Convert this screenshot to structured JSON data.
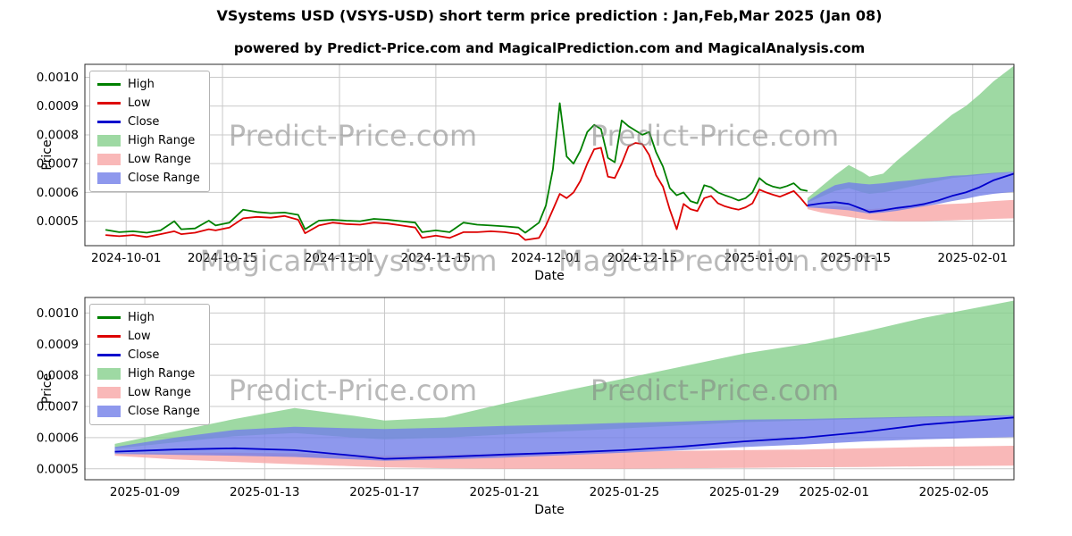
{
  "page": {
    "title": "VSystems USD (VSYS-USD) short term price prediction : Jan,Feb,Mar 2025 (Jan 08)",
    "subtitle": "powered by Predict-Price.com and MagicalPrediction.com and MagicalAnalysis.com"
  },
  "watermarks": {
    "predict_price": "Predict-Price.com",
    "magical_analysis": "MagicalAnalysis.com",
    "magical_prediction": "MagicalPrediction.com"
  },
  "colors": {
    "high": "#008000",
    "low": "#dd0000",
    "close": "#0000cd",
    "high_range": "rgba(134,208,140,0.8)",
    "low_range": "rgba(248,166,166,0.8)",
    "close_range": "rgba(114,126,232,0.8)",
    "grid": "#c9c9c9",
    "frame": "#2a2a2a",
    "watermark": "rgba(128,128,128,0.55)"
  },
  "legend": [
    {
      "label": "High",
      "swatch": "line",
      "color": "colors.high"
    },
    {
      "label": "Low",
      "swatch": "line",
      "color": "colors.low"
    },
    {
      "label": "Close",
      "swatch": "line",
      "color": "colors.close"
    },
    {
      "label": "High Range",
      "swatch": "patch",
      "color": "colors.high_range"
    },
    {
      "label": "Low Range",
      "swatch": "patch",
      "color": "colors.low_range"
    },
    {
      "label": "Close Range",
      "swatch": "patch",
      "color": "colors.close_range"
    }
  ],
  "history": {
    "x": [
      "2024-09-28",
      "2024-09-30",
      "2024-10-02",
      "2024-10-04",
      "2024-10-06",
      "2024-10-08",
      "2024-10-09",
      "2024-10-11",
      "2024-10-13",
      "2024-10-14",
      "2024-10-16",
      "2024-10-18",
      "2024-10-20",
      "2024-10-22",
      "2024-10-24",
      "2024-10-26",
      "2024-10-27",
      "2024-10-29",
      "2024-10-31",
      "2024-11-02",
      "2024-11-04",
      "2024-11-06",
      "2024-11-08",
      "2024-11-10",
      "2024-11-12",
      "2024-11-13",
      "2024-11-15",
      "2024-11-17",
      "2024-11-19",
      "2024-11-21",
      "2024-11-23",
      "2024-11-25",
      "2024-11-27",
      "2024-11-28",
      "2024-11-30",
      "2024-12-01",
      "2024-12-02",
      "2024-12-03",
      "2024-12-04",
      "2024-12-05",
      "2024-12-06",
      "2024-12-07",
      "2024-12-08",
      "2024-12-09",
      "2024-12-10",
      "2024-12-11",
      "2024-12-12",
      "2024-12-13",
      "2024-12-14",
      "2024-12-15",
      "2024-12-16",
      "2024-12-17",
      "2024-12-18",
      "2024-12-19",
      "2024-12-20",
      "2024-12-21",
      "2024-12-22",
      "2024-12-23",
      "2024-12-24",
      "2024-12-25",
      "2024-12-26",
      "2024-12-27",
      "2024-12-28",
      "2024-12-29",
      "2024-12-30",
      "2024-12-31",
      "2025-01-01",
      "2025-01-02",
      "2025-01-03",
      "2025-01-04",
      "2025-01-05",
      "2025-01-06",
      "2025-01-07",
      "2025-01-08"
    ],
    "high": [
      0.00047,
      0.000462,
      0.000465,
      0.00046,
      0.000468,
      0.0005,
      0.000472,
      0.000475,
      0.000502,
      0.000485,
      0.000495,
      0.00054,
      0.000532,
      0.000528,
      0.00053,
      0.000522,
      0.000472,
      0.000502,
      0.000505,
      0.000502,
      0.0005,
      0.000508,
      0.000505,
      0.0005,
      0.000495,
      0.000462,
      0.000468,
      0.000462,
      0.000495,
      0.000488,
      0.000485,
      0.000482,
      0.000478,
      0.00046,
      0.000495,
      0.000555,
      0.00068,
      0.00091,
      0.000725,
      0.0007,
      0.000745,
      0.00081,
      0.000835,
      0.00082,
      0.00072,
      0.000705,
      0.00085,
      0.00083,
      0.000815,
      0.0008,
      0.00081,
      0.00074,
      0.00069,
      0.000615,
      0.00059,
      0.0006,
      0.00057,
      0.000562,
      0.000625,
      0.000618,
      0.0006,
      0.00059,
      0.000582,
      0.000572,
      0.00058,
      0.0006,
      0.00065,
      0.00063,
      0.00062,
      0.000615,
      0.000622,
      0.000632,
      0.00061,
      0.000605
    ],
    "low": [
      0.000452,
      0.000448,
      0.000452,
      0.000445,
      0.000455,
      0.000465,
      0.000455,
      0.00046,
      0.000472,
      0.000468,
      0.000478,
      0.00051,
      0.000515,
      0.000512,
      0.000518,
      0.000505,
      0.000458,
      0.000485,
      0.000495,
      0.00049,
      0.000488,
      0.000495,
      0.000492,
      0.000485,
      0.000478,
      0.000442,
      0.00045,
      0.000442,
      0.000462,
      0.000462,
      0.000465,
      0.000462,
      0.000455,
      0.000435,
      0.000442,
      0.000485,
      0.00054,
      0.000595,
      0.00058,
      0.0006,
      0.00064,
      0.0007,
      0.00075,
      0.000755,
      0.000655,
      0.00065,
      0.0007,
      0.00076,
      0.000772,
      0.000768,
      0.00073,
      0.00066,
      0.00062,
      0.00054,
      0.000472,
      0.00056,
      0.000542,
      0.000535,
      0.00058,
      0.000588,
      0.000562,
      0.000552,
      0.000545,
      0.00054,
      0.000548,
      0.000562,
      0.00061,
      0.0006,
      0.000592,
      0.000585,
      0.000595,
      0.000605,
      0.00058,
      0.000552
    ]
  },
  "forecast": {
    "x": [
      "2025-01-08",
      "2025-01-10",
      "2025-01-12",
      "2025-01-14",
      "2025-01-16",
      "2025-01-17",
      "2025-01-19",
      "2025-01-21",
      "2025-01-23",
      "2025-01-25",
      "2025-01-27",
      "2025-01-29",
      "2025-01-31",
      "2025-02-02",
      "2025-02-04",
      "2025-02-07"
    ],
    "close": [
      0.000555,
      0.000562,
      0.000566,
      0.00056,
      0.000542,
      0.000532,
      0.000538,
      0.000546,
      0.000552,
      0.00056,
      0.000572,
      0.000588,
      0.0006,
      0.000618,
      0.000642,
      0.000665
    ],
    "high_range": {
      "upper": [
        0.00058,
        0.00062,
        0.00066,
        0.000695,
        0.00067,
        0.000655,
        0.000665,
        0.00071,
        0.00075,
        0.00079,
        0.00083,
        0.00087,
        0.0009,
        0.00094,
        0.000985,
        0.00104
      ],
      "lower": [
        0.000565,
        0.000585,
        0.000605,
        0.000615,
        0.0006,
        0.000595,
        0.0006,
        0.00061,
        0.00062,
        0.00063,
        0.00064,
        0.00065,
        0.000655,
        0.00066,
        0.000665,
        0.00067
      ]
    },
    "low_range": {
      "upper": [
        0.00055,
        0.000552,
        0.000552,
        0.00055,
        0.000545,
        0.000542,
        0.000545,
        0.000548,
        0.000552,
        0.000555,
        0.000558,
        0.00056,
        0.000562,
        0.000566,
        0.00057,
        0.000574
      ],
      "lower": [
        0.000542,
        0.00053,
        0.000522,
        0.000515,
        0.000508,
        0.000505,
        0.000502,
        0.0005,
        0.0005,
        0.0005,
        0.000502,
        0.000503,
        0.000505,
        0.000506,
        0.000508,
        0.00051
      ]
    },
    "close_range": {
      "upper": [
        0.00057,
        0.0006,
        0.000625,
        0.000635,
        0.00063,
        0.000628,
        0.000632,
        0.000638,
        0.000642,
        0.000648,
        0.000652,
        0.000658,
        0.00066,
        0.000664,
        0.000668,
        0.000672
      ],
      "lower": [
        0.000548,
        0.000545,
        0.000542,
        0.000538,
        0.00053,
        0.000526,
        0.00053,
        0.000536,
        0.000544,
        0.000552,
        0.00056,
        0.00057,
        0.000578,
        0.000588,
        0.000595,
        0.000602
      ]
    }
  },
  "chart_data": [
    {
      "name": "history-and-forecast-chart",
      "type": "line",
      "title": "",
      "xlabel": "Date",
      "ylabel": "Price",
      "grid": true,
      "legend_position": "upper left",
      "xlim": [
        "2024-09-25",
        "2025-02-07"
      ],
      "ylim": [
        0.000415,
        0.001045
      ],
      "xticks": [
        "2024-10-01",
        "2024-10-15",
        "2024-11-01",
        "2024-11-15",
        "2024-12-01",
        "2024-12-15",
        "2025-01-01",
        "2025-01-15",
        "2025-02-01"
      ],
      "yticks": [
        0.0005,
        0.0006,
        0.0007,
        0.0008,
        0.0009,
        0.001
      ],
      "bands": [
        {
          "name": "High Range",
          "x": "forecast.x",
          "upper": "forecast.high_range.upper",
          "lower": "forecast.high_range.lower",
          "color": "colors.high_range"
        },
        {
          "name": "Low Range",
          "x": "forecast.x",
          "upper": "forecast.low_range.upper",
          "lower": "forecast.low_range.lower",
          "color": "colors.low_range"
        },
        {
          "name": "Close Range",
          "x": "forecast.x",
          "upper": "forecast.close_range.upper",
          "lower": "forecast.close_range.lower",
          "color": "colors.close_range"
        }
      ],
      "lines": [
        {
          "name": "High",
          "x": "history.x",
          "y": "history.high",
          "color": "colors.high"
        },
        {
          "name": "Low",
          "x": "history.x",
          "y": "history.low",
          "color": "colors.low"
        },
        {
          "name": "Close",
          "x": "forecast.x",
          "y": "forecast.close",
          "color": "colors.close"
        }
      ]
    },
    {
      "name": "forecast-zoom-chart",
      "type": "line",
      "title": "",
      "xlabel": "Date",
      "ylabel": "Price",
      "grid": true,
      "legend_position": "upper left",
      "xlim": [
        "2025-01-07",
        "2025-02-07"
      ],
      "ylim": [
        0.000465,
        0.00105
      ],
      "xticks": [
        "2025-01-09",
        "2025-01-13",
        "2025-01-17",
        "2025-01-21",
        "2025-01-25",
        "2025-01-29",
        "2025-02-01",
        "2025-02-05"
      ],
      "yticks": [
        0.0005,
        0.0006,
        0.0007,
        0.0008,
        0.0009,
        0.001
      ],
      "bands": [
        {
          "name": "High Range",
          "x": "forecast.x",
          "upper": "forecast.high_range.upper",
          "lower": "forecast.high_range.lower",
          "color": "colors.high_range"
        },
        {
          "name": "Low Range",
          "x": "forecast.x",
          "upper": "forecast.low_range.upper",
          "lower": "forecast.low_range.lower",
          "color": "colors.low_range"
        },
        {
          "name": "Close Range",
          "x": "forecast.x",
          "upper": "forecast.close_range.upper",
          "lower": "forecast.close_range.lower",
          "color": "colors.close_range"
        }
      ],
      "lines": [
        {
          "name": "Close",
          "x": "forecast.x",
          "y": "forecast.close",
          "color": "colors.close"
        }
      ]
    }
  ]
}
